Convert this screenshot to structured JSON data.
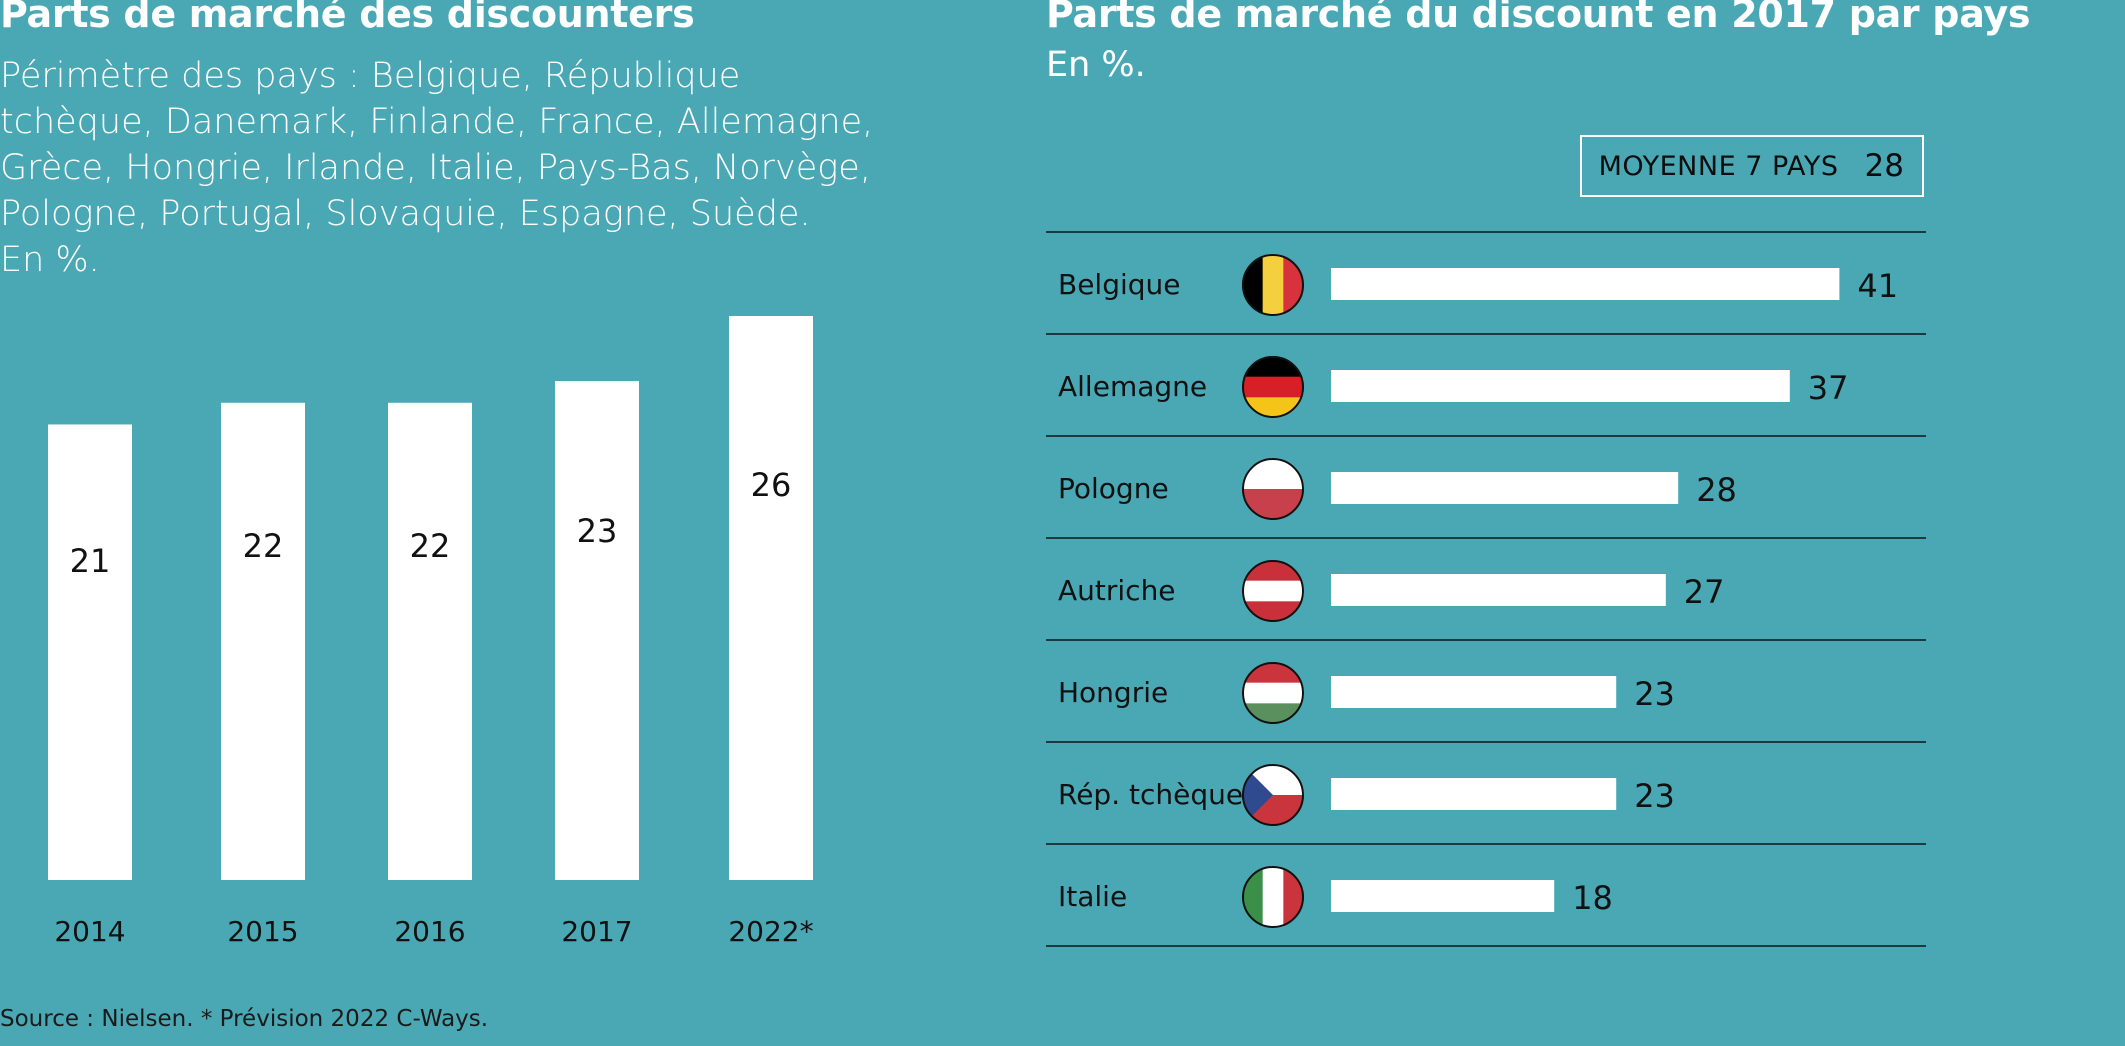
{
  "left_chart": {
    "title": "Parts de marché des discounters",
    "subtitle": "Périmètre des pays : Belgique, République tchèque, Danemark, Finlande, France, Allemagne, Grèce, Hongrie, Irlande, Italie, Pays-Bas, Norvège, Pologne, Portugal, Slovaquie, Espagne, Suède.",
    "unit": "En %."
  },
  "right_chart": {
    "title": "Parts de marché du discount en 2017 par pays",
    "unit": "En %.",
    "average_label": "MOYENNE 7 PAYS",
    "average_value": "28"
  },
  "source": "Source : Nielsen. * Prévision 2022 C-Ways.",
  "colors": {
    "background": "#4aa8b5",
    "bar": "#ffffff",
    "rule": "#1a3a40"
  },
  "chart_data": [
    {
      "type": "bar",
      "orientation": "vertical",
      "categories": [
        "2014",
        "2015",
        "2016",
        "2017",
        "2022*"
      ],
      "values": [
        21,
        22,
        22,
        23,
        26
      ],
      "ylim": [
        0,
        26
      ],
      "grid": false
    },
    {
      "type": "bar",
      "orientation": "horizontal",
      "categories": [
        "Belgique",
        "Allemagne",
        "Pologne",
        "Autriche",
        "Hongrie",
        "Rép. tchèque",
        "Italie"
      ],
      "values": [
        41,
        37,
        28,
        27,
        23,
        23,
        18
      ],
      "flags": [
        "belgium-flag-icon",
        "germany-flag-icon",
        "poland-flag-icon",
        "austria-flag-icon",
        "hungary-flag-icon",
        "czech-flag-icon",
        "italy-flag-icon"
      ],
      "average": 28,
      "grid": false
    }
  ]
}
